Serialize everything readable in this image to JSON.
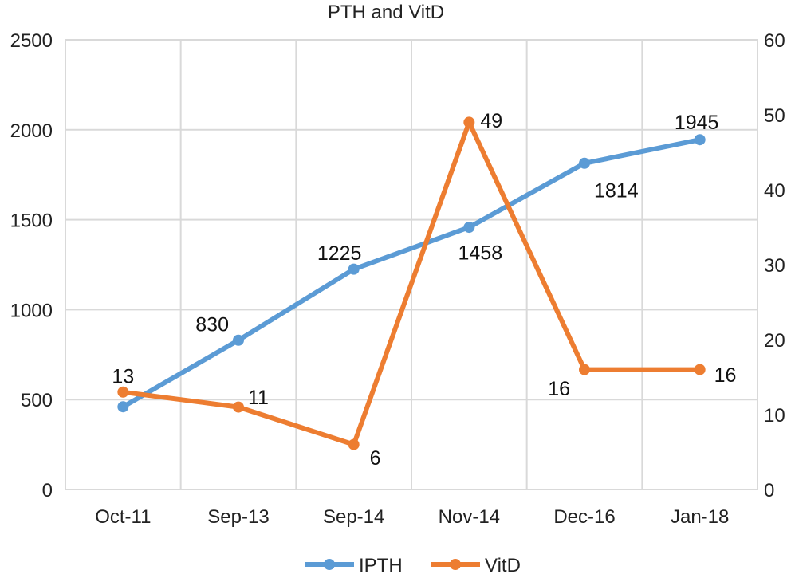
{
  "chart_data": {
    "type": "line",
    "title": "PTH and VitD",
    "categories": [
      "Oct-11",
      "Sep-13",
      "Sep-14",
      "Nov-14",
      "Dec-16",
      "Jan-18"
    ],
    "series": [
      {
        "name": "IPTH",
        "axis": "left",
        "color": "#5b9bd5",
        "values": [
          460,
          830,
          1225,
          1458,
          1814,
          1945
        ],
        "labels": [
          "",
          "830",
          "1225",
          "1458",
          "1814",
          "1945"
        ]
      },
      {
        "name": "VitD",
        "axis": "right",
        "color": "#ed7d31",
        "values": [
          13,
          11,
          6,
          49,
          16,
          16
        ],
        "labels": [
          "13",
          "11",
          "6",
          "49",
          "16",
          "16"
        ]
      }
    ],
    "y_left": {
      "ylim": [
        0,
        2500
      ],
      "ticks": [
        "0",
        "500",
        "1000",
        "1500",
        "2000",
        "2500"
      ]
    },
    "y_right": {
      "ylim": [
        0,
        60
      ],
      "ticks": [
        "0",
        "10",
        "20",
        "30",
        "40",
        "50",
        "60"
      ]
    },
    "grid": true,
    "legend": "bottom-center"
  }
}
